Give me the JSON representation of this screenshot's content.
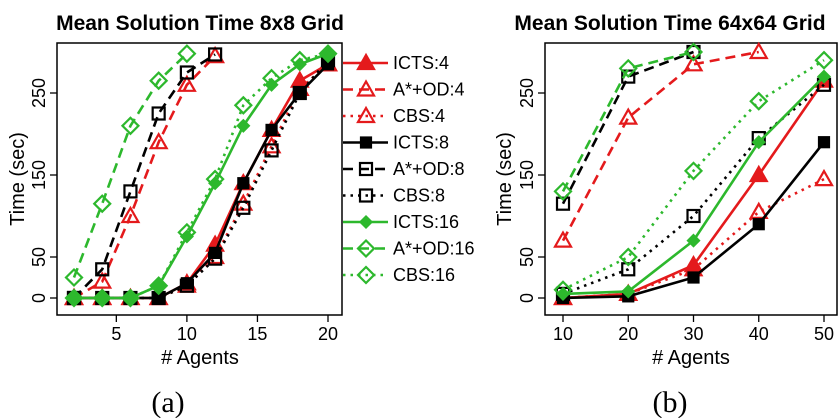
{
  "colors": {
    "red": "#e41a1c",
    "black": "#000000",
    "green": "#2db82d"
  },
  "legend": [
    {
      "label": "ICTS:4",
      "color": "#e41a1c",
      "dash": "solid",
      "marker": "filled-triangle"
    },
    {
      "label": "A*+OD:4",
      "color": "#e41a1c",
      "dash": "dashed",
      "marker": "open-triangle"
    },
    {
      "label": "CBS:4",
      "color": "#e41a1c",
      "dash": "dotted",
      "marker": "open-triangle"
    },
    {
      "label": "ICTS:8",
      "color": "#000000",
      "dash": "solid",
      "marker": "filled-square"
    },
    {
      "label": "A*+OD:8",
      "color": "#000000",
      "dash": "dashed",
      "marker": "open-square"
    },
    {
      "label": "CBS:8",
      "color": "#000000",
      "dash": "dotted",
      "marker": "open-square"
    },
    {
      "label": "ICTS:16",
      "color": "#2db82d",
      "dash": "solid",
      "marker": "filled-diamond"
    },
    {
      "label": "A*+OD:16",
      "color": "#2db82d",
      "dash": "dashed",
      "marker": "open-diamond"
    },
    {
      "label": "CBS:16",
      "color": "#2db82d",
      "dash": "dotted",
      "marker": "open-diamond"
    }
  ],
  "chart_data": [
    {
      "type": "line",
      "title": "Mean Solution Time 8x8 Grid",
      "xlabel": "# Agents",
      "ylabel": "Time (sec)",
      "caption": "(a)",
      "xlim": [
        2,
        20
      ],
      "ylim": [
        0,
        300
      ],
      "xticks": [
        5,
        10,
        15,
        20
      ],
      "yticks": [
        0,
        50,
        150,
        250
      ],
      "x": [
        2,
        4,
        6,
        8,
        10,
        12,
        14,
        16,
        18,
        20
      ],
      "series": [
        {
          "name": "ICTS:4",
          "values": [
            0,
            0,
            0,
            0,
            18,
            65,
            140,
            205,
            265,
            285
          ]
        },
        {
          "name": "A*+OD:4",
          "values": [
            0,
            20,
            100,
            190,
            260,
            295,
            null,
            null,
            null,
            null
          ]
        },
        {
          "name": "CBS:4",
          "values": [
            0,
            0,
            0,
            0,
            15,
            50,
            115,
            185,
            255,
            285
          ]
        },
        {
          "name": "ICTS:8",
          "values": [
            0,
            0,
            0,
            0,
            18,
            55,
            140,
            205,
            250,
            285
          ]
        },
        {
          "name": "A*+OD:8",
          "values": [
            0,
            35,
            130,
            225,
            275,
            297,
            null,
            null,
            null,
            null
          ]
        },
        {
          "name": "CBS:8",
          "values": [
            0,
            0,
            0,
            0,
            15,
            48,
            110,
            180,
            250,
            290
          ]
        },
        {
          "name": "ICTS:16",
          "values": [
            0,
            0,
            0,
            15,
            75,
            140,
            210,
            260,
            285,
            298
          ]
        },
        {
          "name": "A*+OD:16",
          "values": [
            25,
            115,
            210,
            265,
            298,
            null,
            null,
            null,
            null,
            null
          ]
        },
        {
          "name": "CBS:16",
          "values": [
            0,
            0,
            0,
            15,
            80,
            145,
            235,
            268,
            290,
            298
          ]
        }
      ]
    },
    {
      "type": "line",
      "title": "Mean Solution Time 64x64 Grid",
      "xlabel": "# Agents",
      "ylabel": "Time (sec)",
      "caption": "(b)",
      "xlim": [
        10,
        50
      ],
      "ylim": [
        0,
        300
      ],
      "xticks": [
        10,
        20,
        30,
        40,
        50
      ],
      "yticks": [
        0,
        50,
        150,
        250
      ],
      "x": [
        10,
        20,
        30,
        40,
        50
      ],
      "series": [
        {
          "name": "ICTS:4",
          "values": [
            0,
            5,
            40,
            150,
            265
          ]
        },
        {
          "name": "A*+OD:4",
          "values": [
            70,
            220,
            285,
            300,
            null
          ]
        },
        {
          "name": "CBS:4",
          "values": [
            0,
            5,
            35,
            105,
            145
          ]
        },
        {
          "name": "ICTS:8",
          "values": [
            0,
            2,
            25,
            90,
            190
          ]
        },
        {
          "name": "A*+OD:8",
          "values": [
            115,
            270,
            300,
            null,
            null
          ]
        },
        {
          "name": "CBS:8",
          "values": [
            5,
            35,
            100,
            195,
            260
          ]
        },
        {
          "name": "ICTS:16",
          "values": [
            5,
            8,
            70,
            190,
            270
          ]
        },
        {
          "name": "A*+OD:16",
          "values": [
            130,
            280,
            300,
            null,
            null
          ]
        },
        {
          "name": "CBS:16",
          "values": [
            10,
            50,
            155,
            240,
            290
          ]
        }
      ]
    }
  ]
}
